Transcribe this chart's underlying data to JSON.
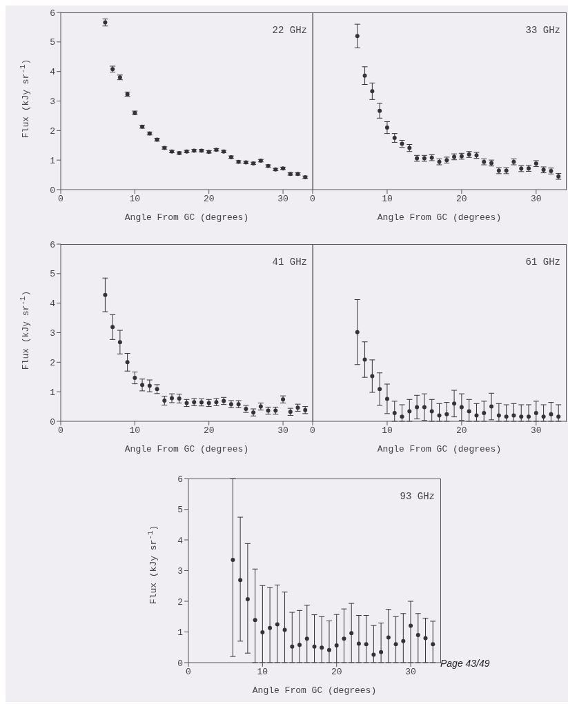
{
  "chart_data": [
    {
      "type": "scatter",
      "title": "22 GHz",
      "xlabel": "Angle From GC (degrees)",
      "ylabel": "Flux (kJy sr$^{-1}$)",
      "color": "#333333",
      "marker": "circle",
      "xlim": [
        0,
        34
      ],
      "ylim": [
        0,
        6
      ],
      "xticks": [
        0,
        10,
        20,
        30
      ],
      "yticks": [
        0,
        1,
        2,
        3,
        4,
        5,
        6
      ],
      "x": [
        6,
        7,
        8,
        9,
        10,
        11,
        12,
        13,
        14,
        15,
        16,
        17,
        18,
        19,
        20,
        21,
        22,
        23,
        24,
        25,
        26,
        27,
        28,
        29,
        30,
        31,
        32,
        33
      ],
      "values": [
        5.66,
        4.08,
        3.8,
        3.23,
        2.6,
        2.13,
        1.9,
        1.69,
        1.41,
        1.29,
        1.24,
        1.29,
        1.32,
        1.32,
        1.28,
        1.35,
        1.29,
        1.1,
        0.94,
        0.92,
        0.89,
        0.98,
        0.8,
        0.68,
        0.72,
        0.53,
        0.53,
        0.42
      ],
      "errors": [
        0.12,
        0.1,
        0.08,
        0.07,
        0.06,
        0.05,
        0.05,
        0.05,
        0.04,
        0.04,
        0.04,
        0.04,
        0.04,
        0.04,
        0.04,
        0.04,
        0.04,
        0.04,
        0.04,
        0.04,
        0.04,
        0.04,
        0.04,
        0.04,
        0.04,
        0.04,
        0.04,
        0.04
      ]
    },
    {
      "type": "scatter",
      "title": "33 GHz",
      "xlabel": "Angle From GC (degrees)",
      "color": "#333333",
      "marker": "circle",
      "xlim": [
        0,
        34
      ],
      "ylim": [
        0,
        6
      ],
      "xticks": [
        0,
        10,
        20,
        30
      ],
      "yticks": [
        0,
        1,
        2,
        3,
        4,
        5,
        6
      ],
      "tick_labels": "x",
      "x": [
        6,
        7,
        8,
        9,
        10,
        11,
        12,
        13,
        14,
        15,
        16,
        17,
        18,
        19,
        20,
        21,
        22,
        23,
        24,
        25,
        26,
        27,
        28,
        29,
        30,
        31,
        32,
        33
      ],
      "values": [
        5.2,
        3.86,
        3.33,
        2.67,
        2.1,
        1.75,
        1.55,
        1.41,
        1.06,
        1.06,
        1.08,
        0.94,
        1.0,
        1.11,
        1.13,
        1.19,
        1.16,
        0.94,
        0.9,
        0.64,
        0.64,
        0.94,
        0.71,
        0.72,
        0.88,
        0.67,
        0.63,
        0.45
      ],
      "errors": [
        0.4,
        0.3,
        0.28,
        0.25,
        0.2,
        0.15,
        0.12,
        0.12,
        0.1,
        0.1,
        0.1,
        0.1,
        0.1,
        0.1,
        0.1,
        0.1,
        0.1,
        0.1,
        0.1,
        0.1,
        0.1,
        0.1,
        0.1,
        0.1,
        0.1,
        0.1,
        0.1,
        0.1
      ]
    },
    {
      "type": "scatter",
      "title": "41 GHz",
      "xlabel": "Angle From GC (degrees)",
      "ylabel": "Flux (kJy sr$^{-1}$)",
      "color": "#333333",
      "marker": "circle",
      "xlim": [
        0,
        34
      ],
      "ylim": [
        0,
        6
      ],
      "xticks": [
        0,
        10,
        20,
        30
      ],
      "yticks": [
        0,
        1,
        2,
        3,
        4,
        5,
        6
      ],
      "x": [
        6,
        7,
        8,
        9,
        10,
        11,
        12,
        13,
        14,
        15,
        16,
        17,
        18,
        19,
        20,
        21,
        22,
        23,
        24,
        25,
        26,
        27,
        28,
        29,
        30,
        31,
        32,
        33
      ],
      "values": [
        4.28,
        3.19,
        2.68,
        2.0,
        1.47,
        1.23,
        1.2,
        1.09,
        0.7,
        0.78,
        0.77,
        0.62,
        0.65,
        0.64,
        0.62,
        0.65,
        0.69,
        0.58,
        0.58,
        0.42,
        0.3,
        0.5,
        0.36,
        0.36,
        0.74,
        0.32,
        0.46,
        0.38
      ],
      "errors": [
        0.57,
        0.42,
        0.4,
        0.3,
        0.2,
        0.2,
        0.2,
        0.15,
        0.15,
        0.15,
        0.15,
        0.12,
        0.12,
        0.12,
        0.12,
        0.12,
        0.12,
        0.12,
        0.12,
        0.12,
        0.12,
        0.12,
        0.12,
        0.12,
        0.12,
        0.12,
        0.12,
        0.12
      ]
    },
    {
      "type": "scatter",
      "title": "61 GHz",
      "xlabel": "Angle From GC (degrees)",
      "color": "#333333",
      "marker": "circle",
      "xlim": [
        0,
        34
      ],
      "ylim": [
        0,
        6
      ],
      "xticks": [
        0,
        10,
        20,
        30
      ],
      "yticks": [
        0,
        1,
        2,
        3,
        4,
        5,
        6
      ],
      "tick_labels": "x",
      "x": [
        6,
        7,
        8,
        9,
        10,
        11,
        12,
        13,
        14,
        15,
        16,
        17,
        18,
        19,
        20,
        21,
        22,
        23,
        24,
        25,
        26,
        27,
        28,
        29,
        30,
        31,
        32,
        33
      ],
      "values": [
        3.02,
        2.09,
        1.53,
        1.09,
        0.76,
        0.28,
        0.16,
        0.34,
        0.48,
        0.48,
        0.34,
        0.2,
        0.24,
        0.6,
        0.48,
        0.34,
        0.2,
        0.28,
        0.5,
        0.2,
        0.16,
        0.2,
        0.16,
        0.16,
        0.28,
        0.16,
        0.24,
        0.16
      ],
      "errors": [
        1.1,
        0.6,
        0.55,
        0.55,
        0.5,
        [
          0,
          0.68
        ],
        [
          0,
          0.56
        ],
        [
          0,
          0.74
        ],
        0.4,
        0.45,
        [
          0,
          0.74
        ],
        [
          0,
          0.6
        ],
        [
          0,
          0.64
        ],
        0.45,
        0.45,
        [
          0,
          0.74
        ],
        [
          0,
          0.6
        ],
        [
          0,
          0.68
        ],
        0.45,
        [
          0,
          0.6
        ],
        [
          0,
          0.56
        ],
        [
          0,
          0.6
        ],
        [
          0,
          0.56
        ],
        [
          0,
          0.56
        ],
        [
          0,
          0.68
        ],
        [
          0,
          0.56
        ],
        [
          0,
          0.64
        ],
        [
          0,
          0.56
        ]
      ]
    },
    {
      "type": "scatter",
      "title": "93 GHz",
      "xlabel": "Angle From GC (degrees)",
      "ylabel": "Flux (kJy sr$^{-1}$)",
      "color": "#333333",
      "marker": "circle",
      "xlim": [
        0,
        34
      ],
      "ylim": [
        0,
        6
      ],
      "xticks": [
        0,
        10,
        20,
        30
      ],
      "yticks": [
        0,
        1,
        2,
        3,
        4,
        5,
        6
      ],
      "annotations": [
        "Page 43/49"
      ],
      "x": [
        6,
        7,
        8,
        9,
        10,
        11,
        12,
        13,
        14,
        15,
        16,
        17,
        18,
        19,
        20,
        21,
        22,
        23,
        24,
        25,
        26,
        27,
        28,
        29,
        30,
        31,
        32,
        33
      ],
      "values": [
        3.35,
        2.69,
        2.07,
        1.39,
        0.99,
        1.13,
        1.25,
        1.07,
        0.52,
        0.58,
        0.78,
        0.52,
        0.49,
        0.41,
        0.56,
        0.78,
        0.96,
        0.62,
        0.6,
        0.26,
        0.34,
        0.82,
        0.6,
        0.7,
        1.2,
        0.9,
        0.8,
        0.6
      ],
      "errors": [
        [
          0.2,
          6
        ],
        [
          0.7,
          4.74
        ],
        [
          0.31,
          3.88
        ],
        [
          0,
          3.05
        ],
        [
          0,
          2.51
        ],
        [
          0,
          2.45
        ],
        [
          0,
          2.53
        ],
        [
          0,
          2.3
        ],
        [
          0,
          1.64
        ],
        [
          0,
          1.7
        ],
        [
          0,
          1.87
        ],
        [
          0,
          1.56
        ],
        [
          0,
          1.5
        ],
        [
          0,
          1.36
        ],
        [
          0,
          1.57
        ],
        [
          0,
          1.75
        ],
        [
          0,
          1.93
        ],
        [
          0,
          1.54
        ],
        [
          0,
          1.54
        ],
        [
          0,
          1.21
        ],
        [
          0,
          1.29
        ],
        [
          0,
          1.74
        ],
        [
          0,
          1.5
        ],
        [
          0,
          1.6
        ],
        [
          0,
          2.0
        ],
        [
          0,
          1.6
        ],
        [
          0,
          1.45
        ],
        [
          0,
          1.35
        ]
      ]
    }
  ]
}
